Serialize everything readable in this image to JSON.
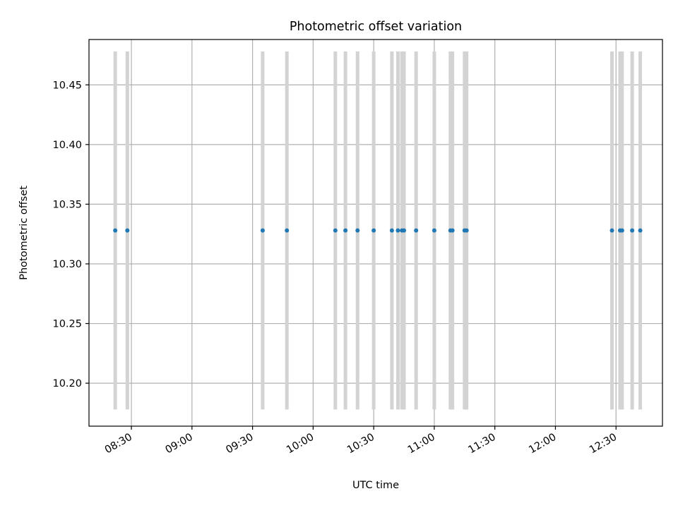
{
  "chart_data": {
    "type": "scatter",
    "title": "Photometric offset variation",
    "xlabel": "UTC time",
    "ylabel": "Photometric offset",
    "xlim": [
      "08:09",
      "12:53"
    ],
    "ylim": [
      10.164,
      10.488
    ],
    "xticks": [
      "08:30",
      "09:00",
      "09:30",
      "10:00",
      "10:30",
      "11:00",
      "11:30",
      "12:00",
      "12:30"
    ],
    "yticks": [
      "10.20",
      "10.25",
      "10.30",
      "10.35",
      "10.40",
      "10.45"
    ],
    "grid": true,
    "legend": "none",
    "series": [
      {
        "marker_color": "#1f77b4",
        "errorbar_color": "#d3d3d3",
        "x": [
          "08:22",
          "08:28",
          "09:35",
          "09:47",
          "10:11",
          "10:16",
          "10:22",
          "10:30",
          "10:39",
          "10:42",
          "10:44",
          "10:45",
          "10:51",
          "11:00",
          "11:08",
          "11:09",
          "11:15",
          "11:16",
          "12:28",
          "12:32",
          "12:33",
          "12:38",
          "12:42"
        ],
        "y": [
          10.328,
          10.328,
          10.328,
          10.328,
          10.328,
          10.328,
          10.328,
          10.328,
          10.328,
          10.328,
          10.328,
          10.328,
          10.328,
          10.328,
          10.328,
          10.328,
          10.328,
          10.328,
          10.328,
          10.328,
          10.328,
          10.328,
          10.328
        ],
        "error": 0.15
      }
    ]
  }
}
